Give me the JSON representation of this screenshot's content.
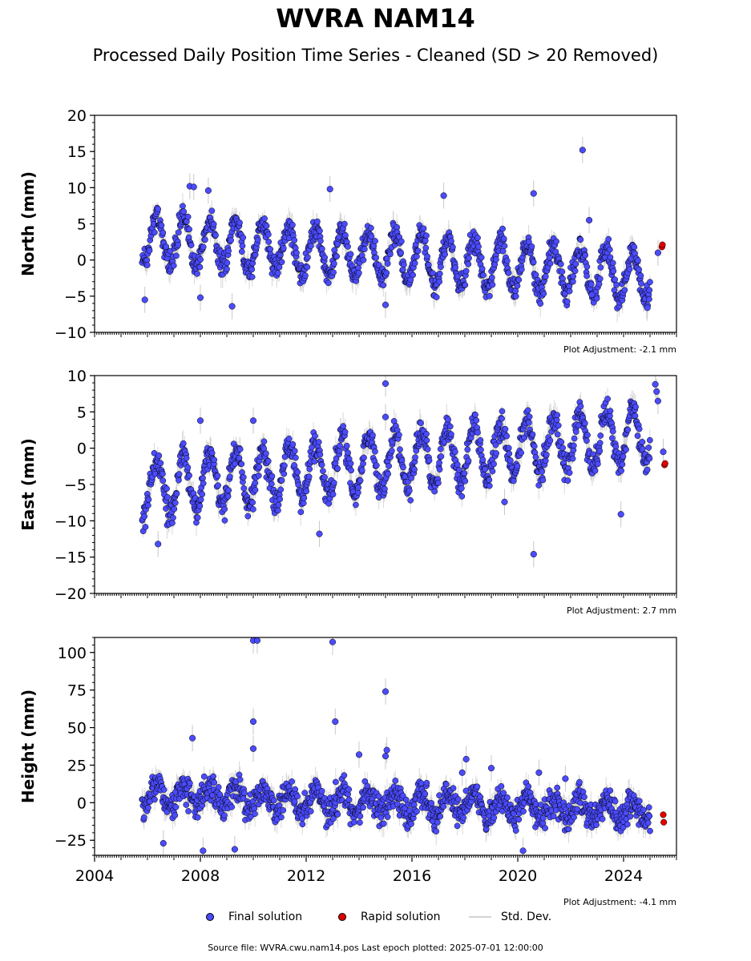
{
  "title": "WVRA NAM14",
  "subtitle": "Processed Daily Position Time Series - Cleaned (SD > 20 Removed)",
  "legend": {
    "final": "Final solution",
    "rapid": "Rapid solution",
    "std": "Std. Dev."
  },
  "footer": "Source file: WVRA.cwu.nam14.pos  Last epoch plotted: 2025-07-01 12:00:00",
  "colors": {
    "final": "#4b4bff",
    "rapid": "#e00000",
    "std": "#c8c8c8",
    "point_edge": "#000000"
  },
  "chart_data": [
    {
      "type": "scatter",
      "ylabel": "North (mm)",
      "ylim": [
        -10,
        20
      ],
      "yticks": [
        -10,
        -5,
        0,
        5,
        10,
        15,
        20
      ],
      "xlim": [
        2004,
        2026
      ],
      "adjustment": "Plot Adjustment: -2.1 mm",
      "series_model": {
        "start": 2005.8,
        "end": 2025.0,
        "trend_start": 3.0,
        "trend_end": -2.3,
        "seasonal_amp": 3.3,
        "noise": 1.2
      },
      "outliers": [
        {
          "x": 2005.9,
          "y": -5.5
        },
        {
          "x": 2007.6,
          "y": 10.2
        },
        {
          "x": 2007.75,
          "y": 10.1
        },
        {
          "x": 2008.3,
          "y": 9.6
        },
        {
          "x": 2012.9,
          "y": 9.8
        },
        {
          "x": 2017.2,
          "y": 8.9
        },
        {
          "x": 2020.6,
          "y": 9.2
        },
        {
          "x": 2022.45,
          "y": 15.2
        },
        {
          "x": 2022.7,
          "y": 5.5
        },
        {
          "x": 2009.2,
          "y": -6.4
        },
        {
          "x": 2008.0,
          "y": -5.2
        },
        {
          "x": 2015.0,
          "y": -6.2
        },
        {
          "x": 2024.9,
          "y": -6.6
        },
        {
          "x": 2022.8,
          "y": -4.8
        },
        {
          "x": 2025.3,
          "y": 1.0
        }
      ],
      "rapid": [
        {
          "x": 2025.45,
          "y": 1.8
        },
        {
          "x": 2025.47,
          "y": 2.1
        }
      ]
    },
    {
      "type": "scatter",
      "ylabel": "East (mm)",
      "ylim": [
        -20,
        10
      ],
      "yticks": [
        -20,
        -15,
        -10,
        -5,
        0,
        5,
        10
      ],
      "xlim": [
        2004,
        2026
      ],
      "adjustment": "Plot Adjustment: 2.7 mm",
      "series_model": {
        "start": 2005.8,
        "end": 2025.0,
        "trend_start": -5.5,
        "trend_end": 2.0,
        "seasonal_amp": 3.8,
        "noise": 1.3
      },
      "outliers": [
        {
          "x": 2006.4,
          "y": -13.2
        },
        {
          "x": 2008.0,
          "y": 3.8
        },
        {
          "x": 2010.0,
          "y": 3.8
        },
        {
          "x": 2012.5,
          "y": -11.8
        },
        {
          "x": 2015.0,
          "y": 8.9
        },
        {
          "x": 2015.0,
          "y": 4.3
        },
        {
          "x": 2020.6,
          "y": -14.6
        },
        {
          "x": 2023.9,
          "y": -9.1
        },
        {
          "x": 2025.2,
          "y": 8.8
        },
        {
          "x": 2025.25,
          "y": 7.8
        },
        {
          "x": 2025.3,
          "y": 6.5
        },
        {
          "x": 2019.5,
          "y": -7.4
        },
        {
          "x": 2025.5,
          "y": -0.5
        }
      ],
      "rapid": [
        {
          "x": 2025.55,
          "y": -2.3
        },
        {
          "x": 2025.57,
          "y": -2.1
        }
      ]
    },
    {
      "type": "scatter",
      "ylabel": "Height (mm)",
      "ylim": [
        -35,
        110
      ],
      "yticks": [
        -25,
        0,
        25,
        50,
        75,
        100
      ],
      "xlim": [
        2004,
        2026
      ],
      "xticks": [
        2004,
        2008,
        2012,
        2016,
        2020,
        2024
      ],
      "adjustment": "Plot Adjustment: -4.1 mm",
      "series_model": {
        "start": 2005.8,
        "end": 2025.0,
        "trend_start": 5.0,
        "trend_end": -6.0,
        "seasonal_amp": 7.0,
        "noise": 6.5
      },
      "outliers": [
        {
          "x": 2010.0,
          "y": 108
        },
        {
          "x": 2010.15,
          "y": 108
        },
        {
          "x": 2013.0,
          "y": 107
        },
        {
          "x": 2015.0,
          "y": 74
        },
        {
          "x": 2010.0,
          "y": 54
        },
        {
          "x": 2013.1,
          "y": 54
        },
        {
          "x": 2007.7,
          "y": 43
        },
        {
          "x": 2010.0,
          "y": 36
        },
        {
          "x": 2015.05,
          "y": 35
        },
        {
          "x": 2015.0,
          "y": 31
        },
        {
          "x": 2014.0,
          "y": 32
        },
        {
          "x": 2018.05,
          "y": 29
        },
        {
          "x": 2017.9,
          "y": 20
        },
        {
          "x": 2019.0,
          "y": 23
        },
        {
          "x": 2008.1,
          "y": -32
        },
        {
          "x": 2009.3,
          "y": -31
        },
        {
          "x": 2020.2,
          "y": -32
        },
        {
          "x": 2006.6,
          "y": -27
        },
        {
          "x": 2020.8,
          "y": 20
        },
        {
          "x": 2021.8,
          "y": 16
        }
      ],
      "rapid": [
        {
          "x": 2025.5,
          "y": -8
        },
        {
          "x": 2025.52,
          "y": -13
        }
      ]
    }
  ]
}
